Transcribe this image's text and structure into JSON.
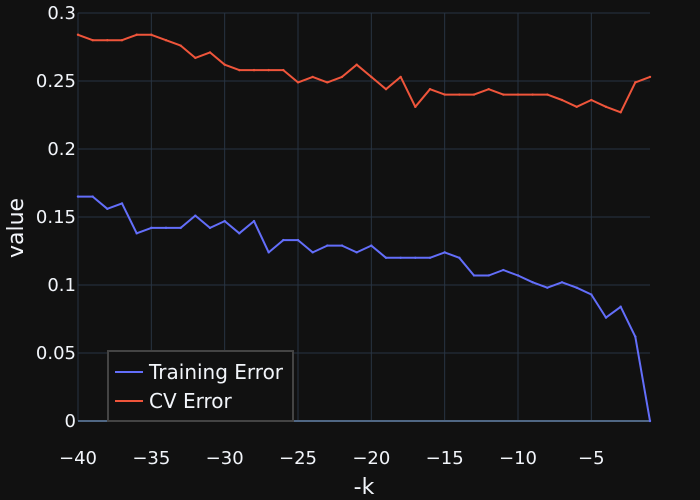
{
  "chart_data": {
    "type": "line",
    "xlabel": "-k",
    "ylabel": "value",
    "xlim": [
      -40,
      -1
    ],
    "ylim": [
      0,
      0.3
    ],
    "x_ticks": [
      -40,
      -35,
      -30,
      -25,
      -20,
      -15,
      -10,
      -5
    ],
    "x_tick_labels": [
      "−40",
      "−35",
      "−30",
      "−25",
      "−20",
      "−15",
      "−10",
      "−5"
    ],
    "y_ticks": [
      0,
      0.05,
      0.1,
      0.15,
      0.2,
      0.25,
      0.3
    ],
    "y_tick_labels": [
      "0",
      "0.05",
      "0.1",
      "0.15",
      "0.2",
      "0.25",
      "0.3"
    ],
    "grid": true,
    "legend_position": "bottom-left",
    "x": [
      -40,
      -39,
      -38,
      -37,
      -36,
      -35,
      -34,
      -33,
      -32,
      -31,
      -30,
      -29,
      -28,
      -27,
      -26,
      -25,
      -24,
      -23,
      -22,
      -21,
      -20,
      -19,
      -18,
      -17,
      -16,
      -15,
      -14,
      -13,
      -12,
      -11,
      -10,
      -9,
      -8,
      -7,
      -6,
      -5,
      -4,
      -3,
      -2,
      -1
    ],
    "series": [
      {
        "name": "Training Error",
        "color": "#636efa",
        "values": [
          0.165,
          0.165,
          0.156,
          0.16,
          0.138,
          0.142,
          0.142,
          0.142,
          0.151,
          0.142,
          0.147,
          0.138,
          0.147,
          0.124,
          0.133,
          0.133,
          0.124,
          0.129,
          0.129,
          0.124,
          0.129,
          0.12,
          0.12,
          0.12,
          0.12,
          0.124,
          0.12,
          0.107,
          0.107,
          0.111,
          0.107,
          0.102,
          0.098,
          0.102,
          0.098,
          0.093,
          0.076,
          0.084,
          0.062,
          0.0
        ]
      },
      {
        "name": "CV Error",
        "color": "#ef553b",
        "values": [
          0.284,
          0.28,
          0.28,
          0.28,
          0.284,
          0.284,
          0.28,
          0.276,
          0.267,
          0.271,
          0.262,
          0.258,
          0.258,
          0.258,
          0.258,
          0.249,
          0.253,
          0.249,
          0.253,
          0.262,
          0.253,
          0.244,
          0.253,
          0.231,
          0.244,
          0.24,
          0.24,
          0.24,
          0.244,
          0.24,
          0.24,
          0.24,
          0.24,
          0.236,
          0.231,
          0.236,
          0.231,
          0.227,
          0.249,
          0.253
        ]
      }
    ]
  }
}
